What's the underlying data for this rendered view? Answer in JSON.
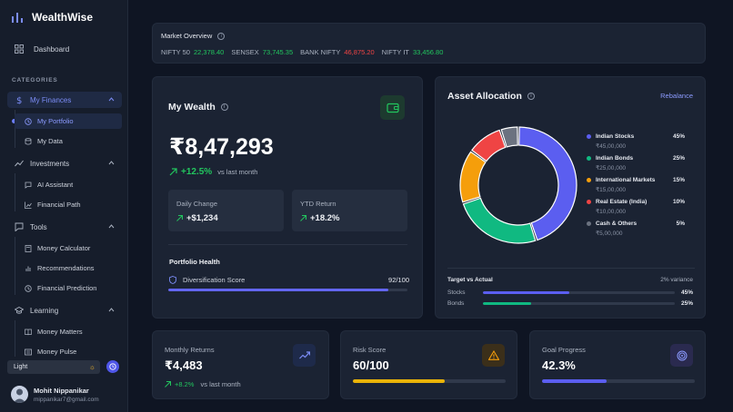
{
  "brand": {
    "name": "WealthWise",
    "icon": "bar-chart-icon"
  },
  "nav": {
    "dashboard": "Dashboard",
    "categories_label": "CATEGORIES"
  },
  "groups": [
    {
      "label": "My Finances",
      "icon": "dollar-icon",
      "items": [
        "My Portfolio",
        "My Data"
      ]
    },
    {
      "label": "Investments",
      "icon": "trend-icon",
      "items": [
        "AI Assistant",
        "Financial Path"
      ]
    },
    {
      "label": "Tools",
      "icon": "chat-icon",
      "items": [
        "Money Calculator",
        "Recommendations",
        "Financial Prediction"
      ]
    },
    {
      "label": "Learning",
      "icon": "graduation-cap-icon",
      "items": [
        "Money Matters",
        "Money Pulse"
      ]
    }
  ],
  "theme": {
    "label": "Light"
  },
  "user": {
    "name": "Mohit Nippanikar",
    "email": "mippanikar7@gmail.com"
  },
  "market": {
    "title": "Market Overview",
    "tickers": [
      {
        "name": "NIFTY 50",
        "value": "22,378.40",
        "trend": "up"
      },
      {
        "name": "SENSEX",
        "value": "73,745.35",
        "trend": "up"
      },
      {
        "name": "BANK NIFTY",
        "value": "46,875.20",
        "trend": "down"
      },
      {
        "name": "NIFTY IT",
        "value": "33,456.80",
        "trend": "up"
      }
    ]
  },
  "wealth": {
    "title": "My Wealth",
    "amount": "₹8,47,293",
    "growth": "+12.5%",
    "growth_suffix": "vs last month",
    "daily_change_label": "Daily Change",
    "daily_change_value": "+$1,234",
    "ytd_label": "YTD Return",
    "ytd_value": "+18.2%",
    "health_title": "Portfolio Health",
    "diversification_label": "Diversification Score",
    "diversification_score": "92/100",
    "diversification_fraction": 0.92
  },
  "allocation": {
    "title": "Asset Allocation",
    "rebalance_label": "Rebalance",
    "items": [
      {
        "name": "Indian Stocks",
        "amount": "₹45,00,000",
        "pct": "45%",
        "value": 45,
        "color": "#5b5ef0"
      },
      {
        "name": "Indian Bonds",
        "amount": "₹25,00,000",
        "pct": "25%",
        "value": 25,
        "color": "#10b981"
      },
      {
        "name": "International Markets",
        "amount": "₹15,00,000",
        "pct": "15%",
        "value": 15,
        "color": "#f59e0b"
      },
      {
        "name": "Real Estate (India)",
        "amount": "₹10,00,000",
        "pct": "10%",
        "value": 10,
        "color": "#ef4444"
      },
      {
        "name": "Cash & Others",
        "amount": "₹5,00,000",
        "pct": "5%",
        "value": 5,
        "color": "#6b7280"
      }
    ],
    "target_title": "Target vs Actual",
    "variance": "2% variance",
    "targets": [
      {
        "name": "Stocks",
        "pct": "45%",
        "fraction": 0.45,
        "color": "#5b5ef0"
      },
      {
        "name": "Bonds",
        "pct": "25%",
        "fraction": 0.25,
        "color": "#10b981"
      }
    ]
  },
  "stats": {
    "monthly": {
      "label": "Monthly Returns",
      "value": "₹4,483",
      "change": "+8.2%",
      "suffix": "vs last month"
    },
    "risk": {
      "label": "Risk Score",
      "value": "60/100",
      "fraction": 0.6
    },
    "goal": {
      "label": "Goal Progress",
      "value": "42.3%",
      "fraction": 0.423
    }
  }
}
